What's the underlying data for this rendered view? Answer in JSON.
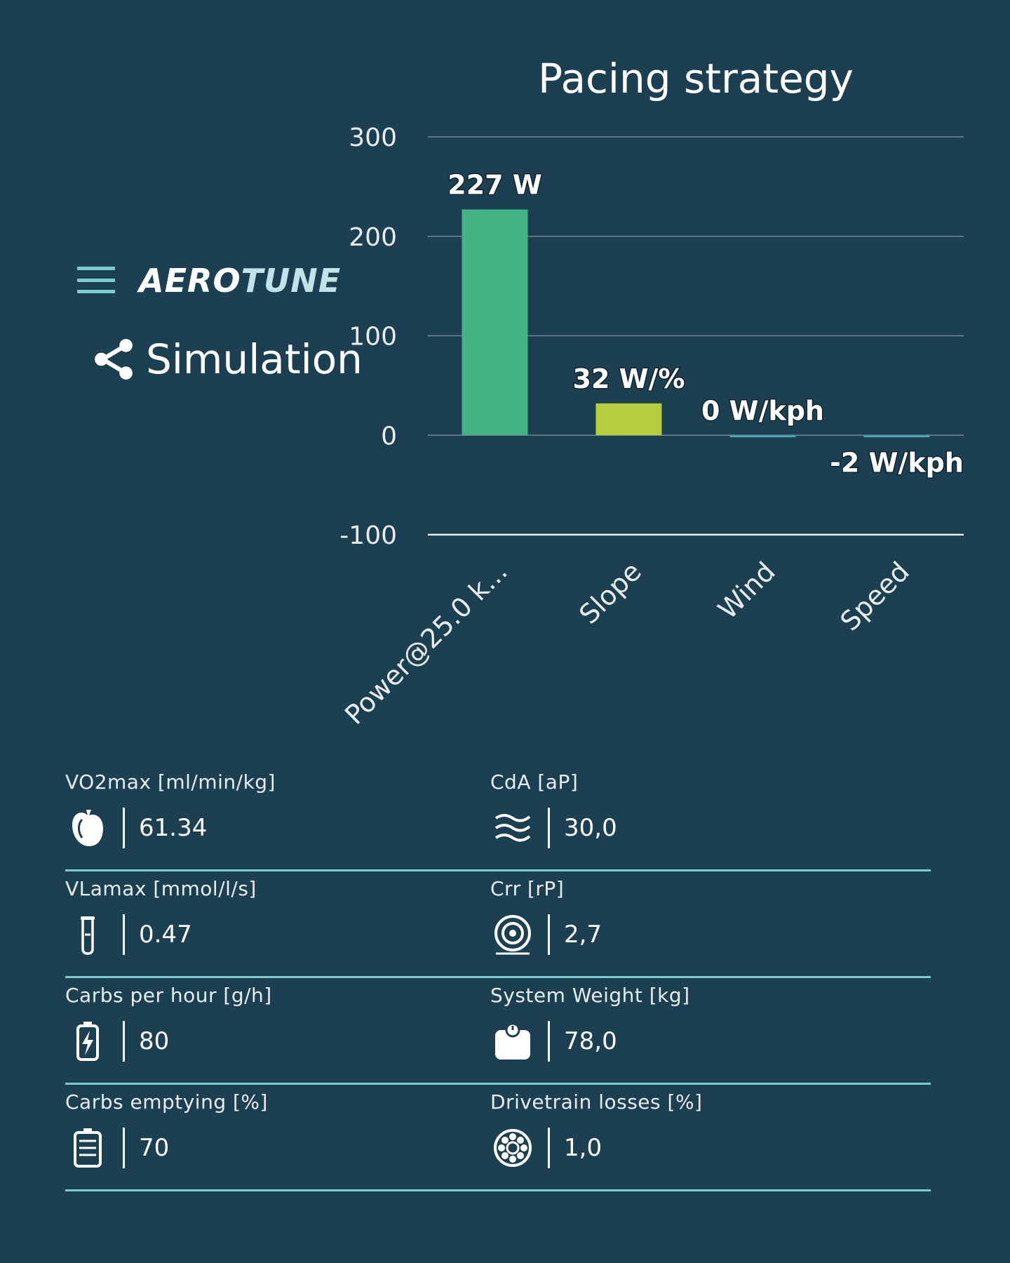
{
  "app": {
    "logo_part1": "AERO",
    "logo_part2": "TUNE",
    "nav_item": "Simulation"
  },
  "chart_data": {
    "type": "bar",
    "title": "Pacing strategy",
    "categories": [
      "Power@25.0 k...",
      "Slope",
      "Wind",
      "Speed"
    ],
    "values": [
      227,
      32,
      0,
      -2
    ],
    "data_labels": [
      "227 W",
      "32 W/%",
      "0 W/kph",
      "-2 W/kph"
    ],
    "colors": [
      "#44b487",
      "#b8cd3e",
      "#4fa0b5",
      "#4fa0b5"
    ],
    "ylim": [
      -100,
      300
    ],
    "yticks": [
      300,
      200,
      100,
      0,
      -100
    ],
    "xlabel": "",
    "ylabel": "",
    "grid": true
  },
  "parameters": [
    {
      "label": "VO2max [ml/min/kg]",
      "value": "61.34",
      "icon": "heart-icon"
    },
    {
      "label": "CdA [aP]",
      "value": "30,0",
      "icon": "wind-icon"
    },
    {
      "label": "VLamax [mmol/l/s]",
      "value": "0.47",
      "icon": "test-tube-icon"
    },
    {
      "label": "Crr [rP]",
      "value": "2,7",
      "icon": "tire-icon"
    },
    {
      "label": "Carbs per hour [g/h]",
      "value": "80",
      "icon": "battery-charge-icon"
    },
    {
      "label": "System Weight [kg]",
      "value": "78,0",
      "icon": "scale-icon"
    },
    {
      "label": "Carbs emptying [%]",
      "value": "70",
      "icon": "battery-icon"
    },
    {
      "label": "Drivetrain losses [%]",
      "value": "1,0",
      "icon": "bearing-icon"
    }
  ]
}
